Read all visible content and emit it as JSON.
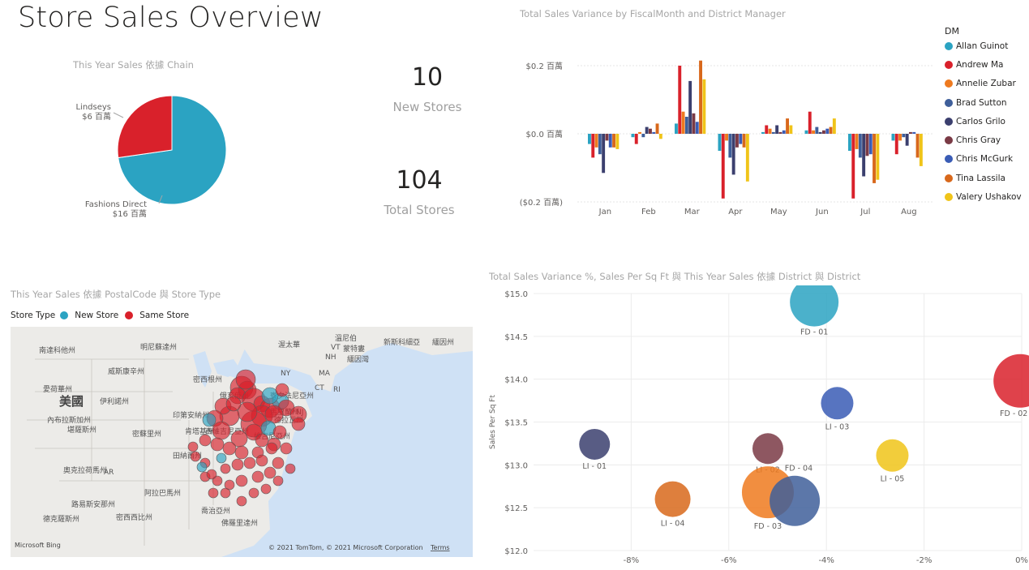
{
  "page": {
    "title": "Store Sales Overview"
  },
  "pie": {
    "title": "This Year Sales 依據 Chain",
    "chart_data": {
      "type": "pie",
      "slices": [
        {
          "label": "Fashions Direct",
          "value_label": "$16 百萬",
          "value": 16,
          "color": "#2ba3c2"
        },
        {
          "label": "Lindseys",
          "value_label": "$6 百萬",
          "value": 6,
          "color": "#d9212b"
        }
      ]
    }
  },
  "cards": {
    "new_stores": {
      "value": "10",
      "label": "New Stores"
    },
    "total_stores": {
      "value": "104",
      "label": "Total Stores"
    }
  },
  "column_chart": {
    "title": "Total Sales Variance by FiscalMonth and District Manager",
    "legend_title": "DM",
    "chart_data": {
      "type": "bar",
      "categories": [
        "Jan",
        "Feb",
        "Mar",
        "Apr",
        "May",
        "Jun",
        "Jul",
        "Aug"
      ],
      "y_ticks": [
        {
          "value": 0.2,
          "label": "$0.2 百萬"
        },
        {
          "value": 0.0,
          "label": "$0.0 百萬"
        },
        {
          "value": -0.2,
          "label": "($0.2 百萬)"
        }
      ],
      "ylim": [
        -0.2,
        0.2
      ],
      "series": [
        {
          "name": "Allan Guinot",
          "color": "#2ba3c2",
          "values": [
            -0.03,
            -0.01,
            0.03,
            -0.05,
            0.005,
            0.01,
            -0.05,
            -0.02
          ]
        },
        {
          "name": "Andrew Ma",
          "color": "#d9212b",
          "values": [
            -0.07,
            -0.03,
            0.2,
            -0.19,
            0.025,
            0.065,
            -0.19,
            -0.06
          ]
        },
        {
          "name": "Annelie Zubar",
          "color": "#ee7a1f",
          "values": [
            -0.04,
            0.005,
            0.065,
            -0.02,
            0.015,
            0.01,
            -0.045,
            -0.02
          ]
        },
        {
          "name": "Brad Sutton",
          "color": "#3f5f9a",
          "values": [
            -0.06,
            -0.01,
            0.05,
            -0.07,
            0.005,
            0.02,
            -0.07,
            -0.01
          ]
        },
        {
          "name": "Carlos Grilo",
          "color": "#3b3f6e",
          "values": [
            -0.115,
            0.02,
            0.155,
            -0.12,
            0.025,
            0.005,
            -0.125,
            -0.035
          ]
        },
        {
          "name": "Chris Gray",
          "color": "#7a3a45",
          "values": [
            -0.02,
            0.015,
            0.06,
            -0.04,
            0.005,
            0.01,
            -0.065,
            0.005
          ]
        },
        {
          "name": "Chris McGurk",
          "color": "#3a5cb5",
          "values": [
            -0.04,
            0.005,
            0.035,
            -0.03,
            0.01,
            0.015,
            -0.06,
            0.005
          ]
        },
        {
          "name": "Tina Lassila",
          "color": "#d8681b",
          "values": [
            -0.04,
            0.03,
            0.215,
            -0.04,
            0.045,
            0.02,
            -0.145,
            -0.07
          ]
        },
        {
          "name": "Valery Ushakov",
          "color": "#f0c419",
          "values": [
            -0.045,
            -0.015,
            0.16,
            -0.14,
            0.025,
            0.045,
            -0.135,
            -0.095
          ]
        }
      ]
    }
  },
  "map": {
    "title": "This Year Sales 依據 PostalCode 與 Store Type",
    "legend_title": "Store Type",
    "legend_items": [
      {
        "name": "New Store",
        "color": "#2ba3c2"
      },
      {
        "name": "Same Store",
        "color": "#d9212b"
      }
    ],
    "place_labels": [
      "溫尼伯",
      "渥太華",
      "蒙特婁",
      "新斯科細亞",
      "緬因州",
      "VT",
      "NH",
      "NY",
      "MA",
      "CT",
      "RI",
      "NJ",
      "緬因灣",
      "南達科他州",
      "明尼蘇達州",
      "威斯康辛州",
      "密西根州",
      "愛荷華州",
      "伊利諾州",
      "印第安納州",
      "俄亥俄州",
      "內布拉斯加州",
      "堪薩斯州",
      "密蘇里州",
      "美國",
      "肯塔基州",
      "田納西州",
      "奧克拉荷馬州",
      "AR",
      "阿拉巴馬州",
      "密西西比州",
      "路易斯安那州",
      "德克薩斯州",
      "佛羅里達州",
      "喬治亞州",
      "西維吉尼亞州",
      "維吉尼亞州",
      "馬里蘭州",
      "德拉瓦州",
      "賓夕法尼亞州"
    ],
    "attribution": "© 2021 TomTom, © 2021 Microsoft Corporation",
    "terms": "Terms",
    "bing_logo": "Microsoft Bing"
  },
  "scatter": {
    "title": "Total Sales Variance %, Sales Per Sq Ft 與 This Year Sales 依據 District 與 District",
    "chart_data": {
      "type": "scatter",
      "ylabel": "Sales Per Sq Ft",
      "xlim": [
        -0.1,
        0.0
      ],
      "ylim": [
        12.0,
        15.0
      ],
      "x_ticks": [
        {
          "value": -0.08,
          "label": "-8%"
        },
        {
          "value": -0.06,
          "label": "-6%"
        },
        {
          "value": -0.04,
          "label": "-4%"
        },
        {
          "value": -0.02,
          "label": "-2%"
        },
        {
          "value": 0.0,
          "label": "0%"
        }
      ],
      "y_ticks": [
        {
          "value": 15.0,
          "label": "$15.0"
        },
        {
          "value": 14.5,
          "label": "$14.5"
        },
        {
          "value": 14.0,
          "label": "$14.0"
        },
        {
          "value": 13.5,
          "label": "$13.5"
        },
        {
          "value": 13.0,
          "label": "$13.0"
        },
        {
          "value": 12.5,
          "label": "$12.5"
        },
        {
          "value": 12.0,
          "label": "$12.0"
        }
      ],
      "points": [
        {
          "label": "FD - 01",
          "x": -0.0425,
          "y": 14.9,
          "size": 30,
          "color": "#2ba3c2"
        },
        {
          "label": "FD - 02",
          "x": -0.0003,
          "y": 13.98,
          "size": 33,
          "color": "#d9212b"
        },
        {
          "label": "LI - 03",
          "x": -0.0378,
          "y": 13.72,
          "size": 20,
          "color": "#3a5cb5"
        },
        {
          "label": "LI - 01",
          "x": -0.0875,
          "y": 13.24,
          "size": 19,
          "color": "#3b3f6e"
        },
        {
          "label": "LI - 02",
          "x": -0.052,
          "y": 13.19,
          "size": 19,
          "color": "#7a3a45"
        },
        {
          "label": "FD - 04",
          "x": -0.052,
          "y": 13.19,
          "size": 0,
          "color": "#7a3a45"
        },
        {
          "label": "LI - 05",
          "x": -0.0265,
          "y": 13.11,
          "size": 20,
          "color": "#f0c419"
        },
        {
          "label": "LI - 04",
          "x": -0.0715,
          "y": 12.6,
          "size": 22,
          "color": "#d8681b"
        },
        {
          "label": "FD - 03",
          "x": -0.052,
          "y": 12.68,
          "size": 32,
          "color": "#ee7a1f"
        },
        {
          "label": "",
          "x": -0.0465,
          "y": 12.58,
          "size": 31,
          "color": "#3f5f9a"
        }
      ]
    }
  }
}
